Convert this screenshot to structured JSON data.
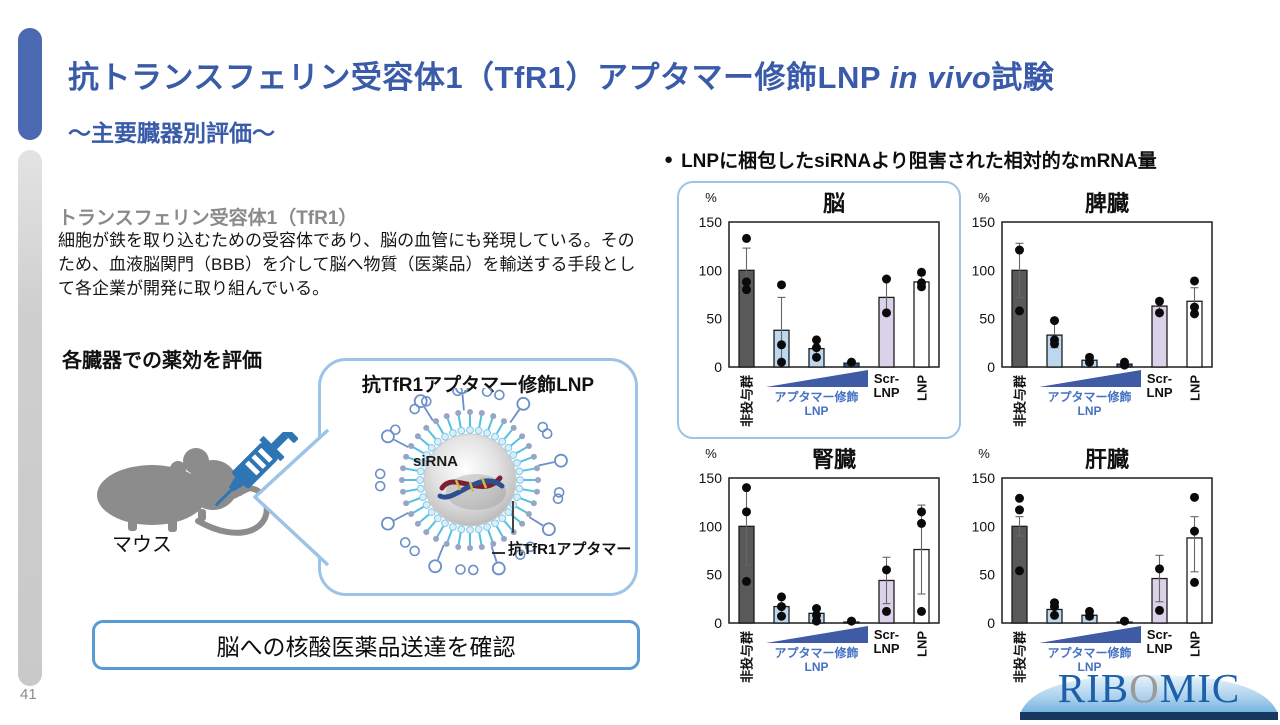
{
  "header": {
    "title_part1": "抗トランスフェリン受容体1（TfR1）アプタマー修飾LNP ",
    "title_italic": "in vivo",
    "title_part2": "試験",
    "subtitle": "～主要臓器別評価～"
  },
  "left_panel": {
    "tfr1_heading": "トランスフェリン受容体1（TfR1）",
    "tfr1_body": "細胞が鉄を取り込むための受容体であり、脳の血管にも発現している。そのため、血液脳関門（BBB）を介して脳へ物質（医薬品）を輸送する手段として各企業が開発に取り組んでいる。",
    "evaluation_label": "各臓器での薬効を評価",
    "mouse_label": "マウス",
    "bubble_title": "抗TfR1アプタマー修飾LNP",
    "sirna_label": "siRNA",
    "aptamer_label": "抗TfR1アプタマー",
    "conclusion": "脳への核酸医薬品送達を確認"
  },
  "right_panel": {
    "bullet_marker": "●",
    "bullet_text": "LNPに梱包したsiRNAより阻害された相対的なmRNA量"
  },
  "page_number": "41",
  "logo": {
    "pre": "RIB",
    "o": "O",
    "post": "MIC"
  },
  "colors": {
    "darkgray": "#595959",
    "lightblue": "#bdd7ee",
    "darkblue": "#2f5597",
    "lavender": "#d9d2e9",
    "white": "#ffffff",
    "triangle": "#3f5ba5",
    "blue_label": "#4472c4",
    "axis": "#2b2b2b",
    "error": "#666666",
    "point": "#0a0a0a"
  },
  "chart_common": {
    "type": "bar",
    "unit": "%",
    "ylim": [
      0,
      150
    ],
    "yticks": [
      0,
      50,
      100,
      150
    ],
    "grid": false,
    "x_labels": {
      "first": "非投与群",
      "group_line1": "アプタマー修飾",
      "group_line2": "LNP",
      "scr_line1": "Scr-",
      "scr_line2": "LNP",
      "last": "LNP"
    }
  },
  "chart_data": [
    {
      "name": "brain",
      "title": "脳",
      "highlighted": true,
      "bars": [
        {
          "label": "非投与群",
          "color": "darkgray",
          "value": 100,
          "err": [
            77,
            123
          ],
          "points": [
            133,
            88,
            80
          ]
        },
        {
          "label": "アプタマー修飾LNP 低用量",
          "color": "lightblue",
          "value": 38,
          "err": [
            4,
            72
          ],
          "points": [
            85,
            23,
            5
          ]
        },
        {
          "label": "アプタマー修飾LNP 中用量",
          "color": "lightblue",
          "value": 19,
          "err": [
            9,
            28
          ],
          "points": [
            28,
            20,
            10
          ]
        },
        {
          "label": "アプタマー修飾LNP 高用量",
          "color": "darkblue",
          "value": 4,
          "err": null,
          "points": [
            5
          ]
        },
        {
          "label": "Scr-LNP",
          "color": "lavender",
          "value": 72,
          "err": [
            54,
            90
          ],
          "points": [
            91,
            56
          ]
        },
        {
          "label": "LNP",
          "color": "white",
          "value": 88,
          "err": [
            81,
            95
          ],
          "points": [
            98,
            87,
            83
          ]
        }
      ]
    },
    {
      "name": "spleen",
      "title": "脾臓",
      "highlighted": false,
      "bars": [
        {
          "label": "非投与群",
          "color": "darkgray",
          "value": 100,
          "err": [
            72,
            128
          ],
          "points": [
            121,
            58
          ]
        },
        {
          "label": "アプタマー修飾LNP 低用量",
          "color": "lightblue",
          "value": 33,
          "err": [
            20,
            47
          ],
          "points": [
            48,
            28,
            24
          ]
        },
        {
          "label": "アプタマー修飾LNP 中用量",
          "color": "lightblue",
          "value": 7,
          "err": [
            3,
            11
          ],
          "points": [
            10,
            5
          ]
        },
        {
          "label": "アプタマー修飾LNP 高用量",
          "color": "darkblue",
          "value": 3,
          "err": null,
          "points": [
            5,
            2
          ]
        },
        {
          "label": "Scr-LNP",
          "color": "lavender",
          "value": 63,
          "err": [
            56,
            70
          ],
          "points": [
            68,
            56
          ]
        },
        {
          "label": "LNP",
          "color": "white",
          "value": 68,
          "err": [
            54,
            82
          ],
          "points": [
            89,
            62,
            55
          ]
        }
      ]
    },
    {
      "name": "kidney",
      "title": "腎臓",
      "highlighted": false,
      "bars": [
        {
          "label": "非投与群",
          "color": "darkgray",
          "value": 100,
          "err": [
            60,
            140
          ],
          "points": [
            140,
            115,
            43
          ]
        },
        {
          "label": "アプタマー修飾LNP 低用量",
          "color": "lightblue",
          "value": 17,
          "err": [
            8,
            26
          ],
          "points": [
            27,
            17,
            7
          ]
        },
        {
          "label": "アプタマー修飾LNP 中用量",
          "color": "lightblue",
          "value": 10,
          "err": [
            2,
            17
          ],
          "points": [
            15,
            8,
            2
          ]
        },
        {
          "label": "アプタマー修飾LNP 高用量",
          "color": "darkblue",
          "value": 1,
          "err": null,
          "points": [
            2
          ]
        },
        {
          "label": "Scr-LNP",
          "color": "lavender",
          "value": 44,
          "err": [
            20,
            68
          ],
          "points": [
            55,
            12
          ]
        },
        {
          "label": "LNP",
          "color": "white",
          "value": 76,
          "err": [
            30,
            122
          ],
          "points": [
            115,
            103,
            12
          ]
        }
      ]
    },
    {
      "name": "liver",
      "title": "肝臓",
      "highlighted": false,
      "bars": [
        {
          "label": "非投与群",
          "color": "darkgray",
          "value": 100,
          "err": [
            90,
            110
          ],
          "points": [
            129,
            117,
            54
          ]
        },
        {
          "label": "アプタマー修飾LNP 低用量",
          "color": "lightblue",
          "value": 14,
          "err": [
            8,
            21
          ],
          "points": [
            21,
            17,
            8
          ]
        },
        {
          "label": "アプタマー修飾LNP 中用量",
          "color": "lightblue",
          "value": 8,
          "err": [
            4,
            12
          ],
          "points": [
            12,
            7
          ]
        },
        {
          "label": "アプタマー修飾LNP 高用量",
          "color": "darkblue",
          "value": 1,
          "err": null,
          "points": [
            2
          ]
        },
        {
          "label": "Scr-LNP",
          "color": "lavender",
          "value": 46,
          "err": [
            22,
            70
          ],
          "points": [
            56,
            13
          ]
        },
        {
          "label": "LNP",
          "color": "white",
          "value": 88,
          "err": [
            53,
            110
          ],
          "points": [
            130,
            95,
            42
          ]
        }
      ]
    }
  ]
}
